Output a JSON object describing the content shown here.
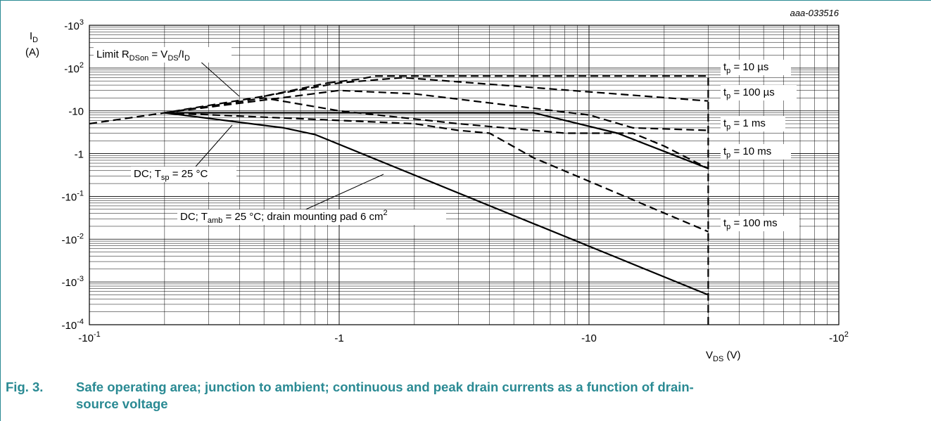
{
  "figure": {
    "id": "aaa-033516",
    "caption_number": "Fig. 3.",
    "caption_line1": "Safe operating area; junction to ambient; continuous and peak drain currents as a function of drain-",
    "caption_line2": "source voltage"
  },
  "colors": {
    "caption": "#2a8a93",
    "frame": "#2a8a93",
    "ink": "#000000",
    "grid": "#000000"
  },
  "chart_data": {
    "type": "line",
    "title": "",
    "x_scale": "log",
    "y_scale": "log",
    "xlabel": {
      "main": "V",
      "sub": "DS",
      "unit": " (V)"
    },
    "ylabel": {
      "main": "I",
      "sub": "D",
      "unit": "(A)"
    },
    "xlim": [
      -0.1,
      -100
    ],
    "ylim": [
      -0.0001,
      -1000
    ],
    "grid": true,
    "x_ticks": [
      {
        "value": -0.1,
        "base": "-10",
        "exp": "-1"
      },
      {
        "value": -1,
        "base": "-1",
        "exp": ""
      },
      {
        "value": -10,
        "base": "-10",
        "exp": ""
      },
      {
        "value": -100,
        "base": "-10",
        "exp": "2"
      }
    ],
    "y_ticks": [
      {
        "value": -1000,
        "base": "-10",
        "exp": "3"
      },
      {
        "value": -100,
        "base": "-10",
        "exp": "2"
      },
      {
        "value": -10,
        "base": "-10",
        "exp": ""
      },
      {
        "value": -1,
        "base": "-1",
        "exp": ""
      },
      {
        "value": -0.1,
        "base": "-10",
        "exp": "-1"
      },
      {
        "value": -0.01,
        "base": "-10",
        "exp": "-2"
      },
      {
        "value": -0.001,
        "base": "-10",
        "exp": "-3"
      },
      {
        "value": -0.0001,
        "base": "-10",
        "exp": "-4"
      }
    ],
    "series": [
      {
        "name": "Limit RDSon = VDS/ID",
        "style": "dashed",
        "x": [
          -0.1,
          -0.2,
          -0.5,
          -0.9
        ],
        "y": [
          -5,
          -9,
          -22,
          -45
        ]
      },
      {
        "name": "tp = 10 µs",
        "style": "dashed",
        "x": [
          -0.9,
          -1.2,
          -1.4,
          -8,
          -30,
          -30
        ],
        "y": [
          -45,
          -55,
          -65,
          -65,
          -65,
          -0.0001
        ]
      },
      {
        "name": "tp = 100 µs",
        "style": "dashed",
        "x": [
          -0.5,
          -1.0,
          -1.8,
          -6,
          -30
        ],
        "y": [
          -22,
          -45,
          -60,
          -35,
          -17
        ]
      },
      {
        "name": "tp = 1 ms",
        "style": "dashed",
        "x": [
          -0.2,
          -1,
          -2,
          -10,
          -15,
          -30
        ],
        "y": [
          -9,
          -30,
          -25,
          -8,
          -4,
          -3.5
        ]
      },
      {
        "name": "tp = 10 ms",
        "style": "dashed",
        "x": [
          -0.2,
          -0.5,
          -1,
          -3,
          -8,
          -15,
          -20,
          -30
        ],
        "y": [
          -9,
          -20,
          -10,
          -5,
          -3,
          -3,
          -1.5,
          -0.45
        ]
      },
      {
        "name": "tp = 100 ms",
        "style": "dashed",
        "x": [
          -0.2,
          -2,
          -3,
          -4,
          -6,
          -30
        ],
        "y": [
          -9,
          -5,
          -3.5,
          -3,
          -0.8,
          -0.015
        ]
      },
      {
        "name": "DC; Tsp = 25 °C",
        "style": "solid",
        "x": [
          -0.2,
          -6,
          -13,
          -30
        ],
        "y": [
          -9,
          -9,
          -3,
          -0.45
        ]
      },
      {
        "name": "DC; Tamb = 25 °C; drain mounting pad 6 cm2",
        "style": "solid",
        "x": [
          -0.2,
          -0.6,
          -0.8,
          -30
        ],
        "y": [
          -9,
          -4,
          -2.8,
          -0.0005
        ]
      }
    ],
    "annotations": [
      {
        "id": "limit",
        "main": "Limit R",
        "sub": "DSon",
        "rest": " = V",
        "sub2": "DS",
        "rest2": "/I",
        "sub3": "D",
        "sup": ""
      },
      {
        "id": "tp10us",
        "main": "t",
        "sub": "p",
        "rest": " = 10 µs"
      },
      {
        "id": "tp100us",
        "main": "t",
        "sub": "p",
        "rest": " = 100 µs"
      },
      {
        "id": "tp1ms",
        "main": "t",
        "sub": "p",
        "rest": " = 1 ms"
      },
      {
        "id": "tp10ms",
        "main": "t",
        "sub": "p",
        "rest": " = 10 ms"
      },
      {
        "id": "tp100ms",
        "main": "t",
        "sub": "p",
        "rest": " = 100 ms"
      },
      {
        "id": "dc_tsp",
        "main": "DC; T",
        "sub": "sp",
        "rest": " = 25 °C"
      },
      {
        "id": "dc_tamb",
        "main": "DC; T",
        "sub": "amb",
        "rest": " = 25 °C; drain mounting pad 6 cm",
        "sup": "2"
      }
    ]
  }
}
